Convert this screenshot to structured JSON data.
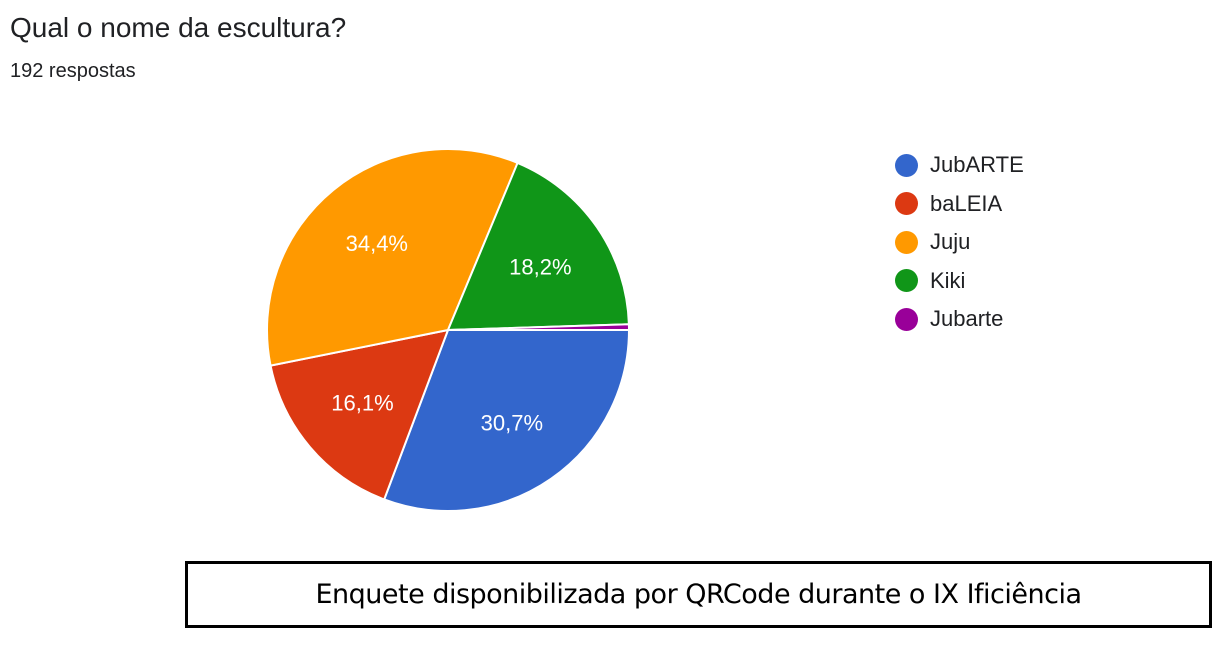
{
  "header": {
    "title": "Qual o nome da escultura?",
    "responses": "192 respostas"
  },
  "legend": [
    {
      "label": "JubARTE",
      "color": "#3366CC"
    },
    {
      "label": "baLEIA",
      "color": "#DC3912"
    },
    {
      "label": "Juju",
      "color": "#FF9900"
    },
    {
      "label": "Kiki",
      "color": "#109618"
    },
    {
      "label": "Jubarte",
      "color": "#990099"
    }
  ],
  "caption": "Enquete disponibilizada por QRCode durante o IX Ificiência",
  "chart_data": {
    "type": "pie",
    "title": "Qual o nome da escultura?",
    "subtitle": "192 respostas",
    "categories": [
      "JubARTE",
      "baLEIA",
      "Juju",
      "Kiki",
      "Jubarte"
    ],
    "values": [
      30.7,
      16.1,
      34.4,
      18.2,
      0.5
    ],
    "labels": [
      "30,7%",
      "16,1%",
      "34,4%",
      "18,2%",
      ""
    ],
    "colors": [
      "#3366CC",
      "#DC3912",
      "#FF9900",
      "#109618",
      "#990099"
    ],
    "unit": "%",
    "legend_position": "right"
  }
}
